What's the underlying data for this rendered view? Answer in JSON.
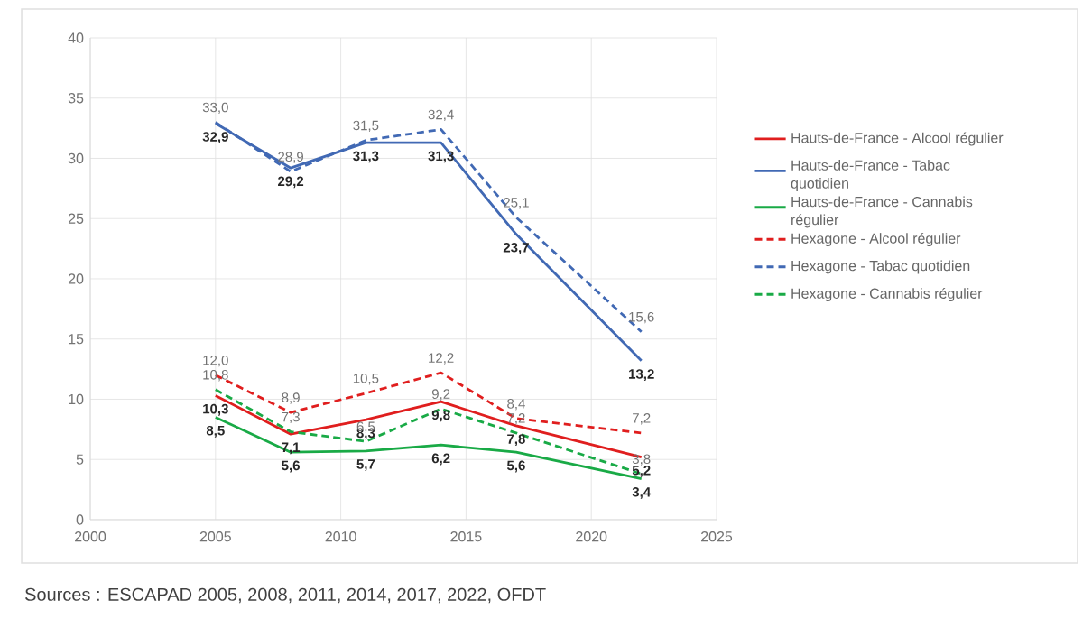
{
  "chart_data": {
    "type": "line",
    "x": [
      2005,
      2008,
      2011,
      2014,
      2017,
      2022
    ],
    "xlim": [
      2000,
      2025
    ],
    "xticks": [
      2000,
      2005,
      2010,
      2015,
      2020,
      2025
    ],
    "ylim": [
      0,
      40
    ],
    "yticks": [
      0,
      5,
      10,
      15,
      20,
      25,
      30,
      35,
      40
    ],
    "grid": true,
    "legend": "right",
    "marker": "none",
    "series": [
      {
        "name": "Hauts-de-France - Alcool régulier",
        "color": "#e01e1e",
        "line_style": "solid",
        "values": [
          10.3,
          7.1,
          8.3,
          9.8,
          7.8,
          5.2
        ],
        "value_labels": [
          "10,3",
          "7,1",
          "8,3",
          "9,8",
          "7,8",
          "5,2"
        ]
      },
      {
        "name": "Hauts-de-France - Tabac quotidien",
        "color": "#4169b4",
        "line_style": "solid",
        "values": [
          32.9,
          29.2,
          31.3,
          31.3,
          23.7,
          13.2
        ],
        "value_labels": [
          "32,9",
          "29,2",
          "31,3",
          "31,3",
          "23,7",
          "13,2"
        ]
      },
      {
        "name": "Hauts-de-France - Cannabis régulier",
        "color": "#19aa46",
        "line_style": "solid",
        "values": [
          8.5,
          5.6,
          5.7,
          6.2,
          5.6,
          3.4
        ],
        "value_labels": [
          "8,5",
          "5,6",
          "5,7",
          "6,2",
          "5,6",
          "3,4"
        ]
      },
      {
        "name": "Hexagone - Alcool régulier",
        "color": "#e01e1e",
        "line_style": "dashed",
        "values": [
          12.0,
          8.9,
          10.5,
          12.2,
          8.4,
          7.2
        ],
        "value_labels": [
          "12,0",
          "8,9",
          "10,5",
          "12,2",
          "8,4",
          "7,2"
        ]
      },
      {
        "name": "Hexagone - Tabac quotidien",
        "color": "#4169b4",
        "line_style": "dashed",
        "values": [
          33.0,
          28.9,
          31.5,
          32.4,
          25.1,
          15.6
        ],
        "value_labels": [
          "33,0",
          "28,9",
          "31,5",
          "32,4",
          "25,1",
          "15,6"
        ]
      },
      {
        "name": "Hexagone - Cannabis régulier",
        "color": "#19aa46",
        "line_style": "dashed",
        "values": [
          10.8,
          7.3,
          6.5,
          9.2,
          7.2,
          3.8
        ],
        "value_labels": [
          "10,8",
          "7,3",
          "6,5",
          "9,2",
          "7,2",
          "3,8"
        ]
      }
    ],
    "annotations": [
      "Sources : ESCAPAD 2005, 2008, 2011, 2014, 2017, 2022, OFDT"
    ]
  }
}
